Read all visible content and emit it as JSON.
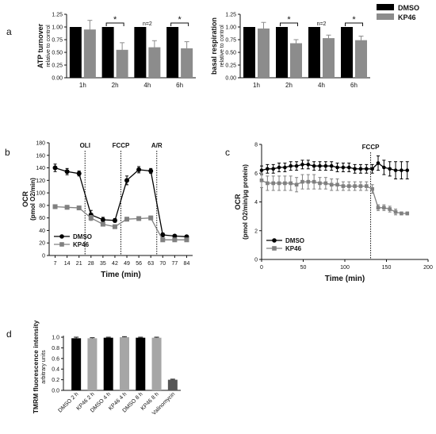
{
  "figure": {
    "panel_labels": [
      "a",
      "b",
      "c",
      "d"
    ],
    "legend": {
      "entries": [
        {
          "label": "DMSO",
          "color": "#000000"
        },
        {
          "label": "KP46",
          "color": "#8c8c8c"
        }
      ]
    }
  },
  "chart_data": [
    {
      "type": "bar",
      "panel": "a",
      "ylabel": "ATP turnover",
      "ylabel_sub": "relative to control",
      "categories": [
        "1h",
        "2h",
        "4h",
        "6h"
      ],
      "yticks": [
        "0.00",
        "0.25",
        "0.50",
        "0.75",
        "1.00",
        "1.25"
      ],
      "ylim": [
        0,
        1.25
      ],
      "series": [
        {
          "name": "DMSO",
          "color": "#000000",
          "values": [
            1.0,
            1.0,
            1.0,
            1.0
          ],
          "errors": [
            0,
            0,
            0,
            0
          ]
        },
        {
          "name": "KP46",
          "color": "#8c8c8c",
          "values": [
            0.95,
            0.55,
            0.6,
            0.58
          ],
          "errors": [
            0.18,
            0.14,
            0.13,
            0.13
          ]
        }
      ],
      "annotations": [
        {
          "category": "2h",
          "text": "*",
          "bracket": true
        },
        {
          "category": "4h",
          "text": "n=2",
          "bracket": false
        },
        {
          "category": "6h",
          "text": "*",
          "bracket": true
        }
      ]
    },
    {
      "type": "bar",
      "panel": "a",
      "ylabel": "basal respiration",
      "ylabel_sub": "relative to control",
      "categories": [
        "1h",
        "2h",
        "4h",
        "6h"
      ],
      "yticks": [
        "0.00",
        "0.25",
        "0.50",
        "0.75",
        "1.00",
        "1.25"
      ],
      "ylim": [
        0,
        1.25
      ],
      "series": [
        {
          "name": "DMSO",
          "color": "#000000",
          "values": [
            1.0,
            1.0,
            1.0,
            1.0
          ],
          "errors": [
            0,
            0,
            0,
            0
          ]
        },
        {
          "name": "KP46",
          "color": "#8c8c8c",
          "values": [
            0.97,
            0.68,
            0.78,
            0.74
          ],
          "errors": [
            0.12,
            0.07,
            0.06,
            0.08
          ]
        }
      ],
      "annotations": [
        {
          "category": "2h",
          "text": "*",
          "bracket": true
        },
        {
          "category": "4h",
          "text": "n=2",
          "bracket": false
        },
        {
          "category": "6h",
          "text": "*",
          "bracket": true
        }
      ]
    },
    {
      "type": "line",
      "panel": "b",
      "xlabel": "Time (min)",
      "ylabel": "OCR",
      "ylabel_sub": "(pmol O2/min)",
      "x": [
        7,
        14,
        21,
        28,
        35,
        42,
        49,
        56,
        63,
        70,
        77,
        84
      ],
      "xlim": [
        3.5,
        87.5
      ],
      "ylim": [
        0,
        180
      ],
      "yticks": [
        0,
        20,
        40,
        60,
        80,
        100,
        120,
        140,
        160,
        180
      ],
      "xticks": [
        7,
        14,
        21,
        28,
        35,
        42,
        49,
        56,
        63,
        70,
        77,
        84
      ],
      "series": [
        {
          "name": "DMSO",
          "color": "#000000",
          "marker": "circle",
          "values": [
            140,
            134,
            131,
            65,
            57,
            56,
            120,
            137,
            135,
            33,
            31,
            30
          ],
          "errors": [
            6,
            5,
            4,
            7,
            4,
            3,
            7,
            5,
            4,
            3,
            2,
            2
          ]
        },
        {
          "name": "KP46",
          "color": "#808080",
          "marker": "square",
          "values": [
            78,
            77,
            76,
            60,
            50,
            46,
            58,
            59,
            60,
            25,
            25,
            25
          ],
          "errors": [
            3,
            3,
            3,
            4,
            3,
            2,
            3,
            3,
            3,
            2,
            2,
            2
          ]
        }
      ],
      "vlines": [
        {
          "x": 24.5,
          "label": "OLI"
        },
        {
          "x": 45.5,
          "label": "FCCP"
        },
        {
          "x": 66.5,
          "label": "A/R"
        }
      ],
      "legend_position": "bottom-left"
    },
    {
      "type": "line",
      "panel": "c",
      "xlabel": "Time (min)",
      "ylabel": "OCR",
      "ylabel_sub": "(pmol O2/min/µg protein)",
      "x": [
        0,
        7,
        14,
        21,
        28,
        35,
        42,
        49,
        56,
        63,
        70,
        77,
        84,
        91,
        98,
        105,
        112,
        119,
        126,
        133,
        140,
        147,
        154,
        161,
        168,
        175
      ],
      "xlim": [
        0,
        200
      ],
      "ylim": [
        0,
        8
      ],
      "xticks": [
        0,
        50,
        100,
        150,
        200
      ],
      "yticks": [
        0,
        2,
        4,
        6,
        8
      ],
      "series": [
        {
          "name": "DMSO",
          "color": "#000000",
          "marker": "circle",
          "values": [
            6.2,
            6.3,
            6.3,
            6.4,
            6.4,
            6.5,
            6.5,
            6.6,
            6.6,
            6.5,
            6.5,
            6.5,
            6.5,
            6.4,
            6.4,
            6.4,
            6.3,
            6.3,
            6.3,
            6.3,
            6.7,
            6.4,
            6.3,
            6.2,
            6.2,
            6.2
          ],
          "errors": [
            0.3,
            0.3,
            0.3,
            0.3,
            0.3,
            0.3,
            0.3,
            0.3,
            0.3,
            0.3,
            0.3,
            0.3,
            0.3,
            0.3,
            0.3,
            0.3,
            0.3,
            0.3,
            0.3,
            0.3,
            0.5,
            0.5,
            0.5,
            0.6,
            0.6,
            0.6
          ]
        },
        {
          "name": "KP46",
          "color": "#808080",
          "marker": "square",
          "values": [
            5.5,
            5.3,
            5.3,
            5.3,
            5.3,
            5.3,
            5.2,
            5.4,
            5.4,
            5.4,
            5.3,
            5.3,
            5.2,
            5.2,
            5.1,
            5.1,
            5.1,
            5.1,
            5.1,
            4.9,
            3.6,
            3.6,
            3.5,
            3.3,
            3.2,
            3.2
          ],
          "errors": [
            0.5,
            0.5,
            0.5,
            0.5,
            0.5,
            0.5,
            0.5,
            0.5,
            0.5,
            0.5,
            0.4,
            0.4,
            0.4,
            0.4,
            0.3,
            0.3,
            0.3,
            0.3,
            0.3,
            0.3,
            0.2,
            0.2,
            0.2,
            0.2,
            0.1,
            0.1
          ]
        }
      ],
      "vlines": [
        {
          "x": 131,
          "label": "FCCP"
        }
      ],
      "legend_position": "bottom-left"
    },
    {
      "type": "bar",
      "panel": "d",
      "ylabel": "TMRM fluorescence intensity",
      "ylabel_sub": "arbitrary units",
      "categories": [
        "DMSO 2 h",
        "KP46 2 h",
        "DMSO 4 h",
        "KP46 4 h",
        "DMSO 8 h",
        "KP46 8 h",
        "Valinomycin"
      ],
      "values": [
        0.98,
        0.98,
        0.99,
        1.0,
        0.99,
        0.99,
        0.2
      ],
      "errors": [
        0.02,
        0.01,
        0.01,
        0.01,
        0.01,
        0.01,
        0.01
      ],
      "colors": [
        "#000000",
        "#a6a6a6",
        "#000000",
        "#a6a6a6",
        "#000000",
        "#a6a6a6",
        "#555555"
      ],
      "ylim": [
        0,
        1.0
      ],
      "yticks": [
        "0.0",
        "0.2",
        "0.4",
        "0.6",
        "0.8",
        "1.0"
      ]
    }
  ]
}
